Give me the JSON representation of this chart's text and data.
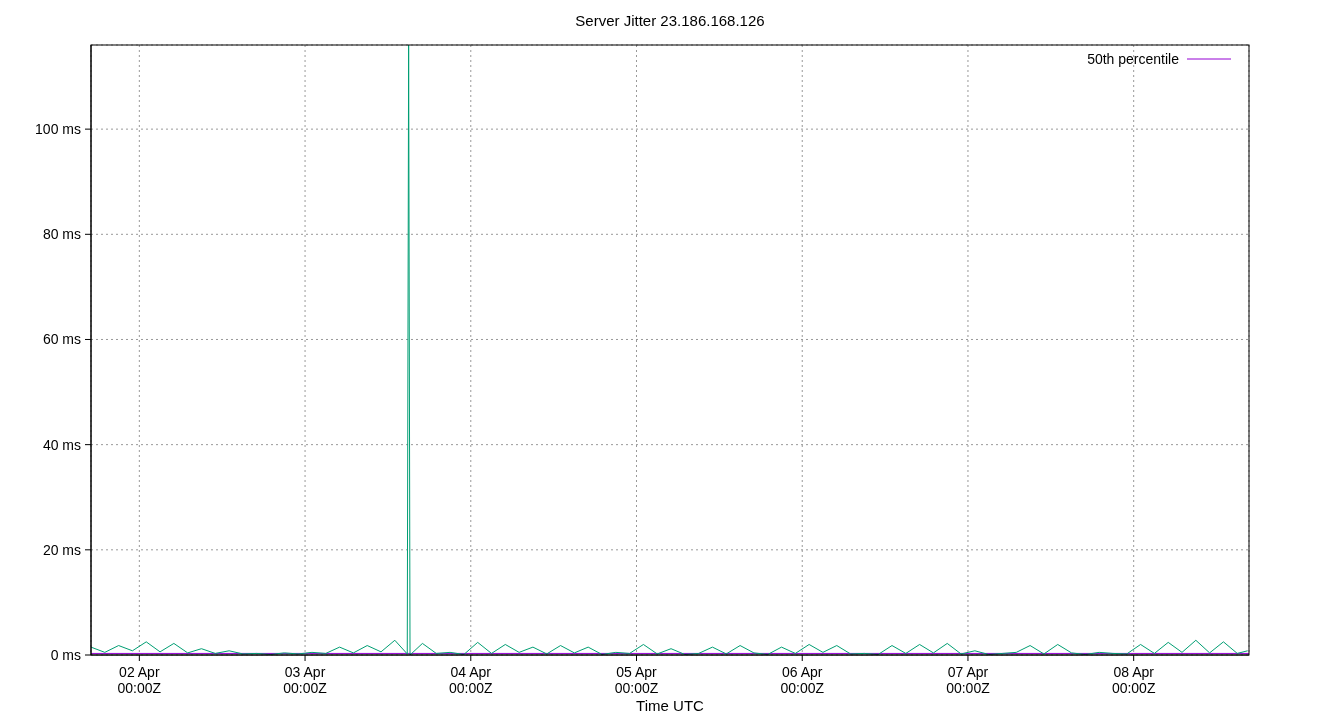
{
  "chart_data": {
    "type": "line",
    "title": "Server Jitter 23.186.168.126",
    "xlabel": "Time UTC",
    "xlim": [
      "--04-01T17:00",
      "--04-08T16:42"
    ],
    "xticks": [
      {
        "value": "--04-02T00:00",
        "label": "02 Apr\n00:00Z"
      },
      {
        "value": "--04-03T00:00",
        "label": "03 Apr\n00:00Z"
      },
      {
        "value": "--04-04T00:00",
        "label": "04 Apr\n00:00Z"
      },
      {
        "value": "--04-05T00:00",
        "label": "05 Apr\n00:00Z"
      },
      {
        "value": "--04-06T00:00",
        "label": "06 Apr\n00:00Z"
      },
      {
        "value": "--04-07T00:00",
        "label": "07 Apr\n00:00Z"
      },
      {
        "value": "--04-08T00:00",
        "label": "08 Apr\n00:00Z"
      }
    ],
    "ylim": [
      0,
      116
    ],
    "yticks": [
      {
        "value": 0,
        "label": "0 ms"
      },
      {
        "value": 20,
        "label": "20 ms"
      },
      {
        "value": 40,
        "label": "40 ms"
      },
      {
        "value": 60,
        "label": "60 ms"
      },
      {
        "value": 80,
        "label": "80 ms"
      },
      {
        "value": 100,
        "label": "100 ms"
      }
    ],
    "grid": true,
    "legend": "top right",
    "line_style": "solid",
    "marker": "none",
    "series": [
      {
        "name": "50th percentile",
        "color": "#9400d3",
        "x": [
          "--04-01T17:00",
          "--04-08T16:42"
        ],
        "values": [
          0.3,
          0.3
        ]
      },
      {
        "color": "#009e73",
        "x": [
          "--04-01T17:00",
          "--04-01T19:00",
          "--04-01T21:00",
          "--04-01T23:00",
          "--04-02T01:00",
          "--04-02T03:00",
          "--04-02T05:00",
          "--04-02T07:00",
          "--04-02T09:00",
          "--04-02T11:00",
          "--04-02T13:00",
          "--04-02T15:00",
          "--04-02T17:00",
          "--04-02T19:00",
          "--04-02T21:00",
          "--04-02T23:00",
          "--04-03T01:00",
          "--04-03T03:00",
          "--04-03T05:00",
          "--04-03T07:00",
          "--04-03T09:00",
          "--04-03T11:00",
          "--04-03T13:00",
          "--04-03T14:48",
          "--04-03T15:00",
          "--04-03T15:12",
          "--04-03T17:00",
          "--04-03T19:00",
          "--04-03T21:00",
          "--04-03T23:00",
          "--04-04T01:00",
          "--04-04T03:00",
          "--04-04T05:00",
          "--04-04T07:00",
          "--04-04T09:00",
          "--04-04T11:00",
          "--04-04T13:00",
          "--04-04T15:00",
          "--04-04T17:00",
          "--04-04T19:00",
          "--04-04T21:00",
          "--04-04T23:00",
          "--04-05T01:00",
          "--04-05T03:00",
          "--04-05T05:00",
          "--04-05T07:00",
          "--04-05T09:00",
          "--04-05T11:00",
          "--04-05T13:00",
          "--04-05T15:00",
          "--04-05T17:00",
          "--04-05T19:00",
          "--04-05T21:00",
          "--04-05T23:00",
          "--04-06T01:00",
          "--04-06T03:00",
          "--04-06T05:00",
          "--04-06T07:00",
          "--04-06T09:00",
          "--04-06T11:00",
          "--04-06T13:00",
          "--04-06T15:00",
          "--04-06T17:00",
          "--04-06T19:00",
          "--04-06T21:00",
          "--04-06T23:00",
          "--04-07T01:00",
          "--04-07T03:00",
          "--04-07T05:00",
          "--04-07T07:00",
          "--04-07T09:00",
          "--04-07T11:00",
          "--04-07T13:00",
          "--04-07T15:00",
          "--04-07T17:00",
          "--04-07T19:00",
          "--04-07T21:00",
          "--04-07T23:00",
          "--04-08T01:00",
          "--04-08T03:00",
          "--04-08T05:00",
          "--04-08T07:00",
          "--04-08T09:00",
          "--04-08T11:00",
          "--04-08T13:00",
          "--04-08T15:00",
          "--04-08T16:30"
        ],
        "values": [
          1.5,
          0.5,
          1.8,
          0.8,
          2.5,
          0.6,
          2.2,
          0.4,
          1.2,
          0.3,
          0.8,
          0.2,
          0.3,
          0.1,
          0.4,
          0.2,
          0.5,
          0.3,
          1.5,
          0.4,
          1.8,
          0.6,
          2.8,
          0.2,
          116,
          0,
          2.2,
          0.3,
          0.5,
          0.1,
          2.4,
          0.3,
          2.0,
          0.5,
          1.5,
          0.2,
          1.8,
          0.4,
          1.5,
          0.1,
          0.5,
          0.3,
          2.0,
          0.2,
          1.2,
          0.1,
          0.3,
          1.5,
          0.2,
          1.8,
          0.4,
          0.1,
          1.5,
          0.3,
          2.0,
          0.5,
          1.8,
          0.2,
          0.3,
          0.1,
          1.8,
          0.3,
          2.0,
          0.4,
          2.2,
          0.2,
          0.8,
          0.1,
          0.3,
          0.5,
          1.8,
          0.2,
          2.0,
          0.4,
          0.1,
          0.5,
          0.3,
          0.2,
          2.0,
          0.3,
          2.4,
          0.5,
          2.8,
          0.4,
          2.5,
          0.3,
          0.8
        ]
      }
    ]
  }
}
